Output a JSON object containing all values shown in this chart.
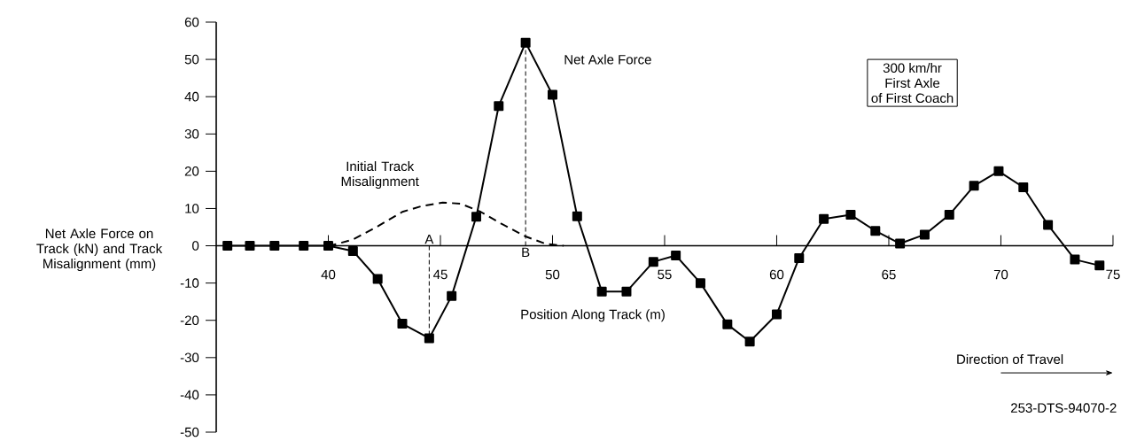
{
  "chart_data": {
    "type": "line",
    "xlabel": "Position Along Track (m)",
    "ylabel": "Net Axle Force on Track (kN) and Track Misalignment (mm)",
    "xlim": [
      35,
      75
    ],
    "xticks": [
      40,
      45,
      50,
      55,
      60,
      65,
      70,
      75
    ],
    "ylim": [
      -50,
      60
    ],
    "yticks": [
      -50,
      -40,
      -30,
      -20,
      -10,
      0,
      10,
      20,
      30,
      40,
      50,
      60
    ],
    "grid": false,
    "legend": false,
    "series": [
      {
        "name": "Net Axle Force",
        "color": "#000000",
        "marker": "square",
        "line_style": "solid",
        "x": [
          35.5,
          36.5,
          37.6,
          38.9,
          40.0,
          41.1,
          42.2,
          43.3,
          44.5,
          45.5,
          46.6,
          47.6,
          48.8,
          50.0,
          51.1,
          52.2,
          53.3,
          54.5,
          55.5,
          56.6,
          57.8,
          58.8,
          60.0,
          61.0,
          62.1,
          63.3,
          64.4,
          65.5,
          66.6,
          67.7,
          68.8,
          69.9,
          71.0,
          72.1,
          73.3,
          74.4
        ],
        "values": [
          0,
          0,
          0,
          0,
          0,
          -1.4,
          -8.9,
          -20.9,
          -24.8,
          -13.5,
          7.8,
          37.5,
          54.5,
          40.5,
          7.9,
          -12.3,
          -12.3,
          -4.3,
          -2.6,
          -10.0,
          -21.1,
          -25.7,
          -18.4,
          -3.3,
          7.2,
          8.3,
          4.0,
          0.6,
          3.0,
          8.3,
          16.1,
          20.0,
          15.7,
          5.6,
          -3.7,
          -5.3
        ]
      },
      {
        "name": "Initial Track Misalignment",
        "color": "#000000",
        "marker": "none",
        "line_style": "dashed",
        "x": [
          40.0,
          40.4,
          41.1,
          42.2,
          43.3,
          44.2,
          45.1,
          45.9,
          46.8,
          47.7,
          48.8,
          49.7,
          50.5
        ],
        "values": [
          0,
          0.5,
          1.7,
          5.2,
          9.1,
          10.7,
          11.6,
          11.3,
          9.1,
          6.0,
          2.5,
          0.5,
          0
        ]
      }
    ],
    "annotations": [
      {
        "text": "A",
        "x": 44.5,
        "y": -24.8
      },
      {
        "text": "B",
        "x": 48.8,
        "y": 54.5
      },
      "300 km/hr",
      "First Axle",
      "of First Coach",
      "Direction of Travel",
      "253-DTS-94070-2"
    ]
  }
}
